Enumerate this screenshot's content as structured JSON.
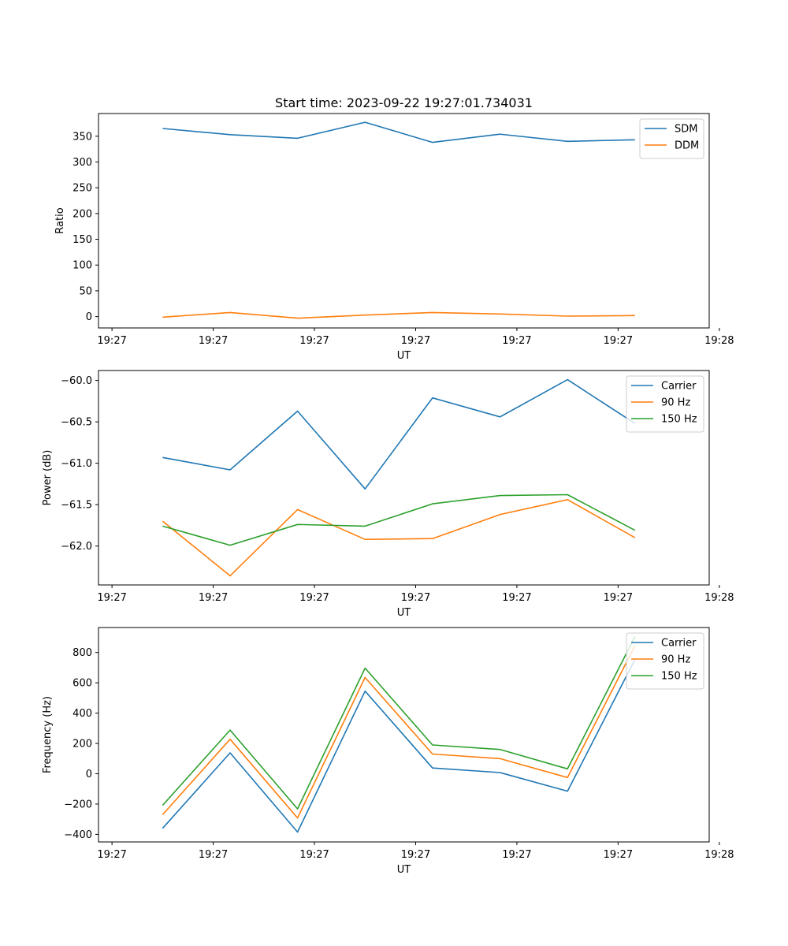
{
  "figure_title": "Start time: 2023-09-22 19:27:01.734031",
  "chart_data": [
    {
      "type": "line",
      "title": "Start time: 2023-09-22 19:27:01.734031",
      "xlabel": "UT",
      "ylabel": "Ratio",
      "xlim": [
        -0.5,
        8.55
      ],
      "ylim": [
        -22,
        394
      ],
      "xticks": [
        {
          "pos": -0.3,
          "label": "19:27"
        },
        {
          "pos": 1.2,
          "label": "19:27"
        },
        {
          "pos": 2.7,
          "label": "19:27"
        },
        {
          "pos": 4.2,
          "label": "19:27"
        },
        {
          "pos": 5.7,
          "label": "19:27"
        },
        {
          "pos": 7.2,
          "label": "19:27"
        },
        {
          "pos": 8.7,
          "label": "19:28"
        }
      ],
      "yticks": [
        0,
        50,
        100,
        150,
        200,
        250,
        300,
        350
      ],
      "legend_position": "top-right",
      "x": [
        0.45,
        1.45,
        2.45,
        3.45,
        4.45,
        5.45,
        6.45,
        7.45
      ],
      "series": [
        {
          "name": "SDM",
          "color": "#1f77b4",
          "values": [
            365,
            353,
            346,
            377,
            338,
            354,
            340,
            343
          ]
        },
        {
          "name": "DDM",
          "color": "#ff7f0e",
          "values": [
            -1,
            8,
            -3,
            3,
            8,
            5,
            1,
            2
          ]
        }
      ]
    },
    {
      "type": "line",
      "title": "",
      "xlabel": "UT",
      "ylabel": "Power (dB)",
      "xlim": [
        -0.5,
        8.55
      ],
      "ylim": [
        -62.47,
        -59.88
      ],
      "xticks": [
        {
          "pos": -0.3,
          "label": "19:27"
        },
        {
          "pos": 1.2,
          "label": "19:27"
        },
        {
          "pos": 2.7,
          "label": "19:27"
        },
        {
          "pos": 4.2,
          "label": "19:27"
        },
        {
          "pos": 5.7,
          "label": "19:27"
        },
        {
          "pos": 7.2,
          "label": "19:27"
        },
        {
          "pos": 8.7,
          "label": "19:28"
        }
      ],
      "yticks": [
        -62.0,
        -61.5,
        -61.0,
        -60.5,
        -60.0
      ],
      "ytick_decimals": 1,
      "legend_position": "top-right",
      "x": [
        0.45,
        1.45,
        2.45,
        3.45,
        4.45,
        5.45,
        6.45,
        7.45
      ],
      "series": [
        {
          "name": "Carrier",
          "color": "#1f77b4",
          "values": [
            -60.93,
            -61.08,
            -60.37,
            -61.31,
            -60.21,
            -60.44,
            -59.99,
            -60.52
          ]
        },
        {
          "name": "90 Hz",
          "color": "#ff7f0e",
          "values": [
            -61.7,
            -62.36,
            -61.56,
            -61.92,
            -61.91,
            -61.62,
            -61.44,
            -61.9
          ]
        },
        {
          "name": "150 Hz",
          "color": "#2ca02c",
          "values": [
            -61.76,
            -61.99,
            -61.74,
            -61.76,
            -61.49,
            -61.39,
            -61.38,
            -61.81
          ]
        }
      ]
    },
    {
      "type": "line",
      "title": "",
      "xlabel": "UT",
      "ylabel": "Frequency (Hz)",
      "xlim": [
        -0.5,
        8.55
      ],
      "ylim": [
        -450,
        965
      ],
      "xticks": [
        {
          "pos": -0.3,
          "label": "19:27"
        },
        {
          "pos": 1.2,
          "label": "19:27"
        },
        {
          "pos": 2.7,
          "label": "19:27"
        },
        {
          "pos": 4.2,
          "label": "19:27"
        },
        {
          "pos": 5.7,
          "label": "19:27"
        },
        {
          "pos": 7.2,
          "label": "19:27"
        },
        {
          "pos": 8.7,
          "label": "19:28"
        }
      ],
      "yticks": [
        -400,
        -200,
        0,
        200,
        400,
        600,
        800
      ],
      "legend_position": "top-right",
      "x": [
        0.45,
        1.45,
        2.45,
        3.45,
        4.45,
        5.45,
        6.45,
        7.45
      ],
      "series": [
        {
          "name": "Carrier",
          "color": "#1f77b4",
          "values": [
            -360,
            138,
            -385,
            545,
            38,
            8,
            -115,
            755
          ]
        },
        {
          "name": "90 Hz",
          "color": "#ff7f0e",
          "values": [
            -270,
            228,
            -292,
            635,
            130,
            100,
            -25,
            845
          ]
        },
        {
          "name": "150 Hz",
          "color": "#2ca02c",
          "values": [
            -208,
            288,
            -232,
            697,
            190,
            160,
            32,
            905
          ]
        }
      ]
    }
  ]
}
